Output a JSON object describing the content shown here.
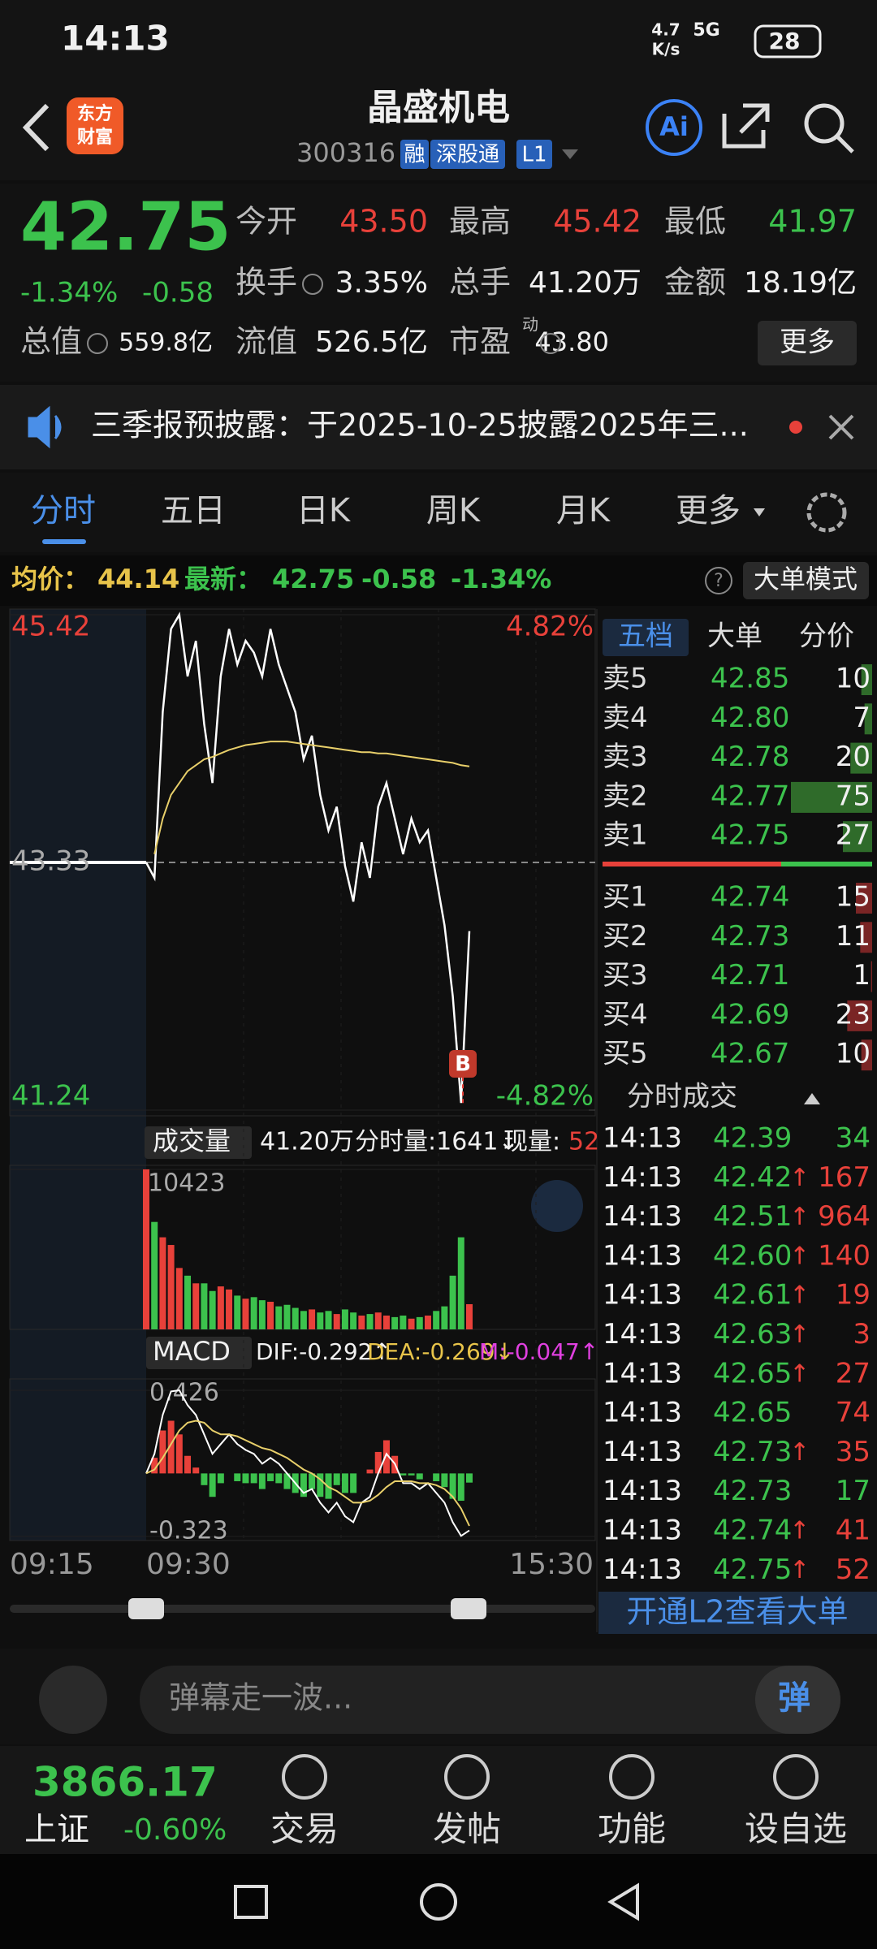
{
  "status_bar": {
    "time": "14:13",
    "net_speed_top": "4.7",
    "net_speed_bottom": "K/s",
    "network": "5G",
    "battery": "28"
  },
  "header": {
    "logo": [
      "东方",
      "财富"
    ],
    "title": "晶盛机电",
    "code": "300316",
    "tags": [
      "融",
      "深股通",
      "L1"
    ],
    "ai": "Ai"
  },
  "quote": {
    "price": "42.75",
    "change_pct": "-1.34%",
    "change": "-0.58",
    "fields": [
      {
        "label": "今开",
        "value": "43.50",
        "color": "#e8413a"
      },
      {
        "label": "最高",
        "value": "45.42",
        "color": "#e8413a"
      },
      {
        "label": "最低",
        "value": "41.97",
        "color": "#3cc24d"
      },
      {
        "label": "换手",
        "value": "3.35%"
      },
      {
        "label": "总手",
        "value": "41.20万"
      },
      {
        "label": "金额",
        "value": "18.19亿"
      },
      {
        "label": "总值",
        "value": "559.8亿"
      },
      {
        "label": "流值",
        "value": "526.5亿"
      },
      {
        "label": "市盈",
        "value": "43.80",
        "sup": "动"
      }
    ],
    "more": "更多"
  },
  "notice": "三季报预披露：于2025-10-25披露2025年三...",
  "tabs": [
    "分时",
    "五日",
    "日K",
    "周K",
    "月K",
    "更多"
  ],
  "info_row": {
    "avg_label": "均价：",
    "avg": "44.14",
    "last_label": "最新：",
    "last": "42.75",
    "change": "-0.58",
    "change_pct": "-1.34%",
    "mode": "大单模式"
  },
  "chart_data": [
    {
      "type": "line",
      "series": [
        {
          "color": "#ffffff",
          "values": [
            43.33,
            43.2,
            44.6,
            45.3,
            45.42,
            44.9,
            45.2,
            44.5,
            44.0,
            44.9,
            45.3,
            45.0,
            45.2,
            45.1,
            44.9,
            45.3,
            45.0,
            44.8,
            44.6,
            44.2,
            44.4,
            43.9,
            43.6,
            43.8,
            43.3,
            43.0,
            43.5,
            43.2,
            43.8,
            44.0,
            43.7,
            43.4,
            43.7,
            43.5,
            43.6,
            43.2,
            42.8,
            42.2,
            41.3,
            42.75
          ]
        },
        {
          "color": "#e8cf6a",
          "values": [
            null,
            43.4,
            43.7,
            43.9,
            44.0,
            44.1,
            44.15,
            44.2,
            44.22,
            44.25,
            44.28,
            44.3,
            44.32,
            44.33,
            44.34,
            44.35,
            44.35,
            44.35,
            44.34,
            44.33,
            44.32,
            44.31,
            44.3,
            44.29,
            44.28,
            44.27,
            44.26,
            44.26,
            44.25,
            44.25,
            44.24,
            44.23,
            44.22,
            44.21,
            44.2,
            44.19,
            44.18,
            44.17,
            44.15,
            44.14
          ]
        }
      ],
      "ylim": [
        41.24,
        45.42
      ],
      "yticks": [
        45.42,
        43.33,
        41.24
      ],
      "y2lim": [
        -4.82,
        4.82
      ],
      "y2ticks": [
        {
          "value": 4.82,
          "label": "4.82%"
        },
        {
          "value": -4.82,
          "label": "-4.82%"
        }
      ],
      "annotation": "B"
    },
    {
      "type": "bar",
      "values": [
        10423,
        7000,
        6000,
        5500,
        4000,
        3500,
        3000,
        3000,
        2500,
        2800,
        2600,
        2200,
        2000,
        2100,
        1900,
        1800,
        1500,
        1600,
        1400,
        1200,
        1300,
        1100,
        1200,
        1000,
        1300,
        1100,
        900,
        1000,
        1100,
        900,
        800,
        900,
        700,
        800,
        900,
        1200,
        1500,
        3500,
        6000,
        1641
      ],
      "colors": {
        "up": "#e8413a",
        "down": "#3cc24d"
      },
      "ylim": [
        0,
        10423
      ],
      "yticks": [
        10423
      ]
    },
    {
      "type": "macd",
      "series": [
        {
          "color": "#ffffff",
          "values": [
            0,
            0.1,
            0.3,
            0.42,
            0.426,
            0.35,
            0.3,
            0.2,
            0.1,
            0.15,
            0.2,
            0.15,
            0.12,
            0.1,
            0.05,
            0.08,
            0.05,
            0,
            -0.05,
            -0.1,
            -0.08,
            -0.15,
            -0.2,
            -0.15,
            -0.22,
            -0.25,
            -0.15,
            -0.12,
            0,
            0.1,
            0.05,
            -0.05,
            -0.05,
            -0.08,
            -0.05,
            -0.1,
            -0.15,
            -0.25,
            -0.32,
            -0.292
          ]
        },
        {
          "color": "#e8cf6a",
          "values": [
            0,
            0.02,
            0.08,
            0.15,
            0.22,
            0.26,
            0.27,
            0.26,
            0.22,
            0.2,
            0.2,
            0.19,
            0.17,
            0.15,
            0.13,
            0.12,
            0.1,
            0.08,
            0.05,
            0.02,
            0,
            -0.03,
            -0.07,
            -0.09,
            -0.12,
            -0.15,
            -0.15,
            -0.14,
            -0.11,
            -0.07,
            -0.04,
            -0.04,
            -0.04,
            -0.05,
            -0.05,
            -0.06,
            -0.08,
            -0.12,
            -0.18,
            -0.269
          ]
        }
      ],
      "bars": {
        "values": [
          0,
          0.08,
          0.22,
          0.27,
          0.2,
          0.09,
          0.03,
          -0.06,
          -0.12,
          -0.05,
          0,
          -0.04,
          -0.05,
          -0.05,
          -0.08,
          -0.04,
          -0.05,
          -0.08,
          -0.1,
          -0.12,
          -0.08,
          -0.12,
          -0.13,
          -0.06,
          -0.1,
          -0.1,
          0,
          0.02,
          0.11,
          0.17,
          0.09,
          -0.01,
          -0.01,
          -0.03,
          0,
          -0.04,
          -0.07,
          -0.13,
          -0.14,
          -0.047
        ],
        "colors": {
          "up": "#e8413a",
          "down": "#3cc24d"
        }
      },
      "ylim": [
        -0.323,
        0.426
      ],
      "yticks": [
        0.426,
        -0.323
      ]
    }
  ],
  "volume_header": {
    "label": "成交量",
    "total": "41.20万",
    "minute": "分时量:1641↓",
    "current_label": "现量:",
    "current": "52"
  },
  "macd_header": {
    "label": "MACD",
    "dif": "DIF:-0.292↑",
    "dea": "DEA:-0.269↓",
    "m": "M:-0.047↑"
  },
  "time_axis": [
    "09:15",
    "09:30",
    "15:30"
  ],
  "order_book": {
    "tabs": [
      "五档",
      "大单",
      "分价"
    ],
    "asks": [
      {
        "label": "卖5",
        "price": "42.85",
        "volume": 10
      },
      {
        "label": "卖4",
        "price": "42.80",
        "volume": 7
      },
      {
        "label": "卖3",
        "price": "42.78",
        "volume": 20
      },
      {
        "label": "卖2",
        "price": "42.77",
        "volume": 75
      },
      {
        "label": "卖1",
        "price": "42.75",
        "volume": 27
      }
    ],
    "bids": [
      {
        "label": "买1",
        "price": "42.74",
        "volume": 15
      },
      {
        "label": "买2",
        "price": "42.73",
        "volume": 11
      },
      {
        "label": "买3",
        "price": "42.71",
        "volume": 1
      },
      {
        "label": "买4",
        "price": "42.69",
        "volume": 23
      },
      {
        "label": "买5",
        "price": "42.67",
        "volume": 10
      }
    ]
  },
  "trades": {
    "title": "分时成交",
    "rows": [
      {
        "time": "14:13",
        "price": "42.39",
        "dir": "",
        "volume": "34",
        "color": "#3cc24d"
      },
      {
        "time": "14:13",
        "price": "42.42",
        "dir": "↑",
        "volume": "167",
        "color": "#e8413a"
      },
      {
        "time": "14:13",
        "price": "42.51",
        "dir": "↑",
        "volume": "964",
        "color": "#e8413a"
      },
      {
        "time": "14:13",
        "price": "42.60",
        "dir": "↑",
        "volume": "140",
        "color": "#e8413a"
      },
      {
        "time": "14:13",
        "price": "42.61",
        "dir": "↑",
        "volume": "19",
        "color": "#e8413a"
      },
      {
        "time": "14:13",
        "price": "42.63",
        "dir": "↑",
        "volume": "3",
        "color": "#e8413a"
      },
      {
        "time": "14:13",
        "price": "42.65",
        "dir": "↑",
        "volume": "27",
        "color": "#e8413a"
      },
      {
        "time": "14:13",
        "price": "42.65",
        "dir": "",
        "volume": "74",
        "color": "#e8413a"
      },
      {
        "time": "14:13",
        "price": "42.73",
        "dir": "↑",
        "volume": "35",
        "color": "#e8413a"
      },
      {
        "time": "14:13",
        "price": "42.73",
        "dir": "",
        "volume": "17",
        "color": "#3cc24d"
      },
      {
        "time": "14:13",
        "price": "42.74",
        "dir": "↑",
        "volume": "41",
        "color": "#e8413a"
      },
      {
        "time": "14:13",
        "price": "42.75",
        "dir": "↑",
        "volume": "52",
        "color": "#e8413a"
      }
    ]
  },
  "l2_banner": "开通L2查看大单",
  "comment": {
    "placeholder": "弹幕走一波...",
    "button": "弹"
  },
  "index": {
    "value": "3866.17",
    "name": "上证",
    "change": "-0.60%"
  },
  "nav": [
    "交易",
    "发帖",
    "功能",
    "设自选"
  ]
}
